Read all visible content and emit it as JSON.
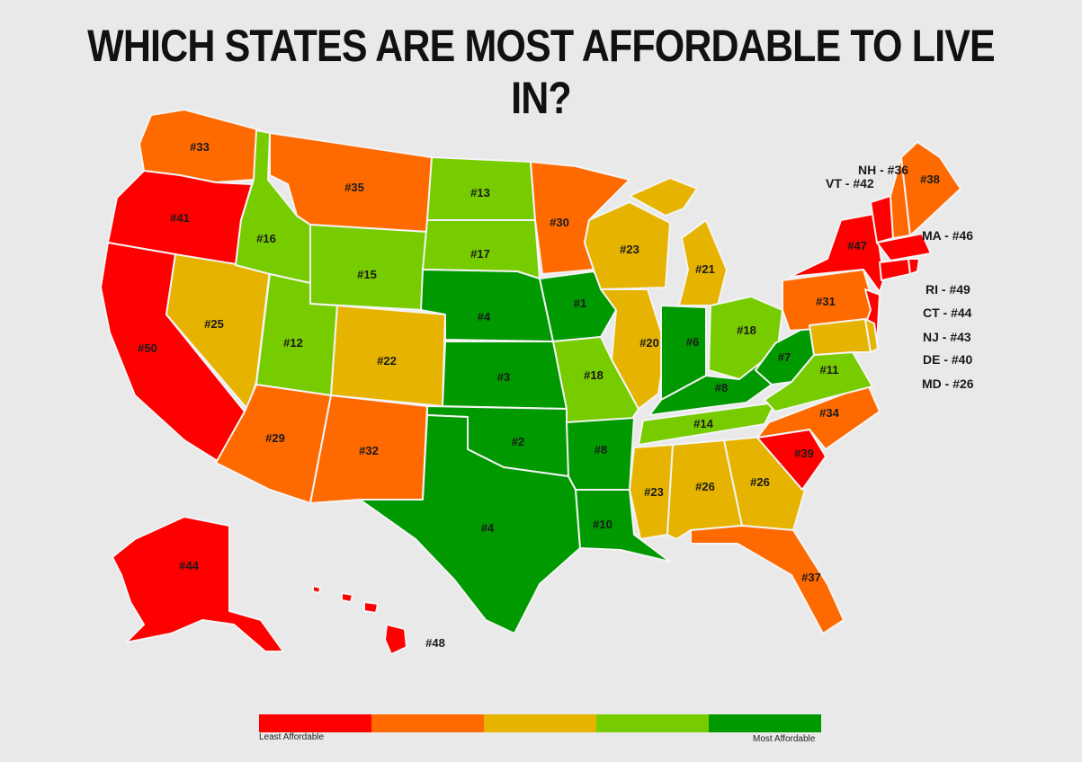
{
  "title": "WHICH STATES ARE MOST AFFORDABLE TO LIVE IN?",
  "tiers": {
    "least": "#ff0000",
    "low": "#ff6a00",
    "mid": "#e6b400",
    "high": "#77cc00",
    "most": "#009900"
  },
  "states": {
    "WA": {
      "rank": "#33",
      "tier": "low"
    },
    "OR": {
      "rank": "#41",
      "tier": "least"
    },
    "CA": {
      "rank": "#50",
      "tier": "least"
    },
    "NV": {
      "rank": "#25",
      "tier": "mid"
    },
    "ID": {
      "rank": "#16",
      "tier": "high"
    },
    "MT": {
      "rank": "#35",
      "tier": "low"
    },
    "WY": {
      "rank": "#15",
      "tier": "high"
    },
    "UT": {
      "rank": "#12",
      "tier": "high"
    },
    "CO": {
      "rank": "#22",
      "tier": "mid"
    },
    "AZ": {
      "rank": "#29",
      "tier": "low"
    },
    "NM": {
      "rank": "#32",
      "tier": "low"
    },
    "ND": {
      "rank": "#13",
      "tier": "high"
    },
    "SD": {
      "rank": "#17",
      "tier": "high"
    },
    "NE": {
      "rank": "#4",
      "tier": "most"
    },
    "KS": {
      "rank": "#3",
      "tier": "most"
    },
    "OK": {
      "rank": "#2",
      "tier": "most"
    },
    "TX": {
      "rank": "#4",
      "tier": "most"
    },
    "MN": {
      "rank": "#30",
      "tier": "low"
    },
    "IA": {
      "rank": "#1",
      "tier": "most"
    },
    "MO": {
      "rank": "#18",
      "tier": "high"
    },
    "AR": {
      "rank": "#8",
      "tier": "most"
    },
    "LA": {
      "rank": "#10",
      "tier": "most"
    },
    "WI": {
      "rank": "#23",
      "tier": "mid"
    },
    "IL": {
      "rank": "#20",
      "tier": "mid"
    },
    "MI": {
      "rank": "#21",
      "tier": "mid"
    },
    "IN": {
      "rank": "#6",
      "tier": "most"
    },
    "OH": {
      "rank": "#18",
      "tier": "high"
    },
    "KY": {
      "rank": "#8",
      "tier": "most"
    },
    "TN": {
      "rank": "#14",
      "tier": "high"
    },
    "MS": {
      "rank": "#23",
      "tier": "mid"
    },
    "AL": {
      "rank": "#26",
      "tier": "mid"
    },
    "GA": {
      "rank": "#26",
      "tier": "mid"
    },
    "FL": {
      "rank": "#37",
      "tier": "low"
    },
    "SC": {
      "rank": "#39",
      "tier": "least"
    },
    "NC": {
      "rank": "#34",
      "tier": "low"
    },
    "VA": {
      "rank": "#11",
      "tier": "high"
    },
    "WV": {
      "rank": "#7",
      "tier": "most"
    },
    "PA": {
      "rank": "#31",
      "tier": "low"
    },
    "NY": {
      "rank": "#47",
      "tier": "least"
    },
    "NJ": {
      "rank": "#43",
      "tier": "least"
    },
    "DE": {
      "rank": "#40",
      "tier": "mid"
    },
    "MD": {
      "rank": "#26",
      "tier": "mid"
    },
    "VT": {
      "rank": "#42",
      "tier": "least"
    },
    "NH": {
      "rank": "#36",
      "tier": "low"
    },
    "ME": {
      "rank": "#38",
      "tier": "low"
    },
    "MA": {
      "rank": "#46",
      "tier": "least"
    },
    "CT": {
      "rank": "#44",
      "tier": "least"
    },
    "RI": {
      "rank": "#49",
      "tier": "least"
    },
    "AK": {
      "rank": "#44",
      "tier": "least"
    },
    "HI": {
      "rank": "#48",
      "tier": "least"
    }
  },
  "side_labels": {
    "NH": "NH - #36",
    "VT": "VT - #42",
    "MA": "MA - #46",
    "RI": "RI - #49",
    "CT": "CT - #44",
    "NJ": "NJ - #43",
    "DE": "DE - #40",
    "MD": "MD - #26"
  },
  "legend": {
    "left_label": "Least Affordable",
    "right_label": "Most Affordable",
    "order": [
      "least",
      "low",
      "mid",
      "high",
      "most"
    ]
  }
}
